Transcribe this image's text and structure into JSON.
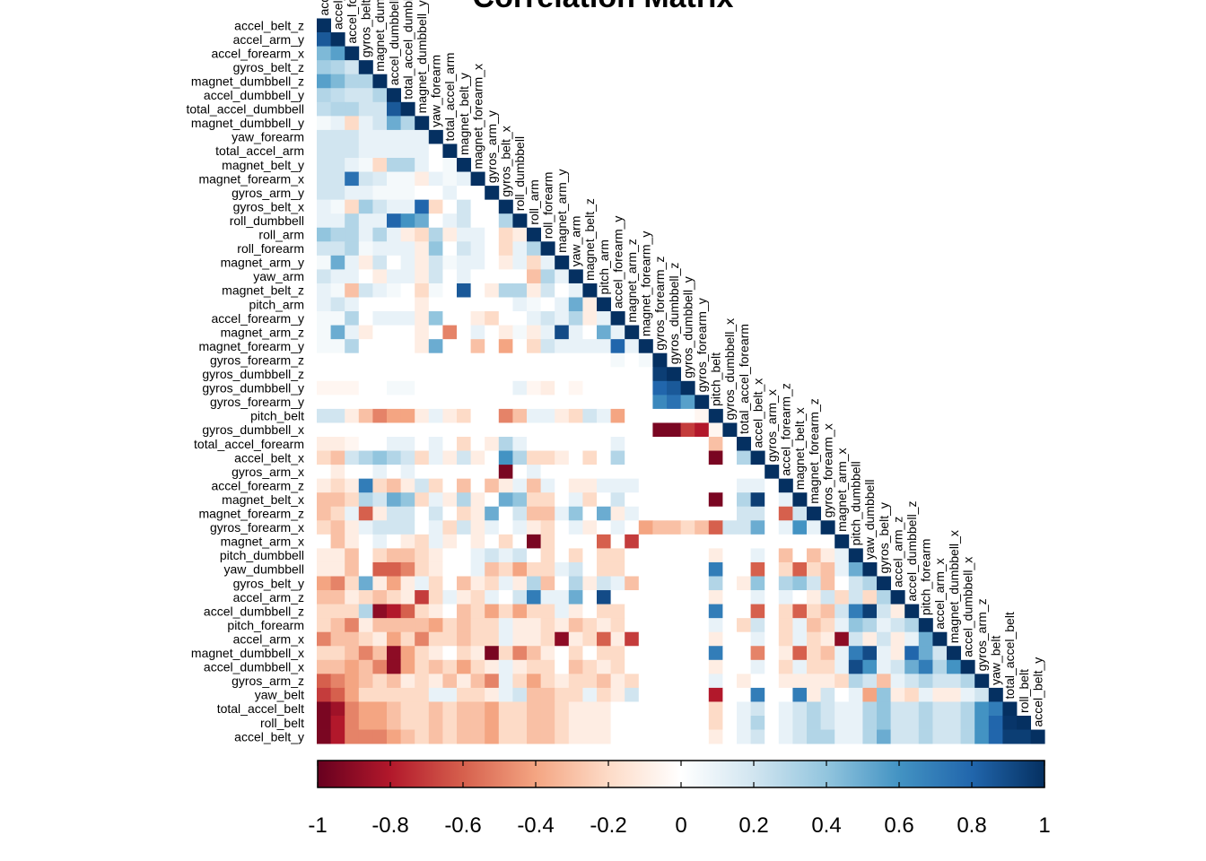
{
  "chart_data": {
    "type": "heatmap",
    "title": "Correlation Matrix",
    "variables": [
      "accel_belt_z",
      "accel_arm_y",
      "accel_forearm_x",
      "gyros_belt_z",
      "magnet_dumbbell_z",
      "accel_dumbbell_y",
      "total_accel_dumbbell",
      "magnet_dumbbell_y",
      "yaw_forearm",
      "total_accel_arm",
      "magnet_belt_y",
      "magnet_forearm_x",
      "gyros_arm_y",
      "gyros_belt_x",
      "roll_dumbbell",
      "roll_arm",
      "roll_forearm",
      "magnet_arm_y",
      "yaw_arm",
      "magnet_belt_z",
      "pitch_arm",
      "accel_forearm_y",
      "magnet_arm_z",
      "magnet_forearm_y",
      "gyros_forearm_z",
      "gyros_dumbbell_z",
      "gyros_dumbbell_y",
      "gyros_forearm_y",
      "pitch_belt",
      "gyros_dumbbell_x",
      "total_accel_forearm",
      "accel_belt_x",
      "gyros_arm_x",
      "accel_forearm_z",
      "magnet_belt_x",
      "magnet_forearm_z",
      "gyros_forearm_x",
      "magnet_arm_x",
      "pitch_dumbbell",
      "yaw_dumbbell",
      "gyros_belt_y",
      "accel_arm_z",
      "accel_dumbbell_z",
      "pitch_forearm",
      "accel_arm_x",
      "magnet_dumbbell_x",
      "accel_dumbbell_x",
      "gyros_arm_z",
      "yaw_belt",
      "total_accel_belt",
      "roll_belt",
      "accel_belt_y"
    ],
    "lower_triangle_rows": [
      [
        1
      ],
      [
        0.85,
        1
      ],
      [
        0.45,
        0.55,
        1
      ],
      [
        0.35,
        0.3,
        0.2,
        1
      ],
      [
        0.55,
        0.45,
        0.3,
        0.3,
        1
      ],
      [
        0.3,
        0.25,
        0.2,
        0.2,
        0.3,
        1
      ],
      [
        0.25,
        0.3,
        0.3,
        0.2,
        0.2,
        0.85,
        1
      ],
      [
        0.05,
        0.1,
        -0.2,
        0.1,
        0.2,
        0.5,
        0.3,
        1
      ],
      [
        0.2,
        0.2,
        0.2,
        0.1,
        0.1,
        0.1,
        0.1,
        0.1,
        1
      ],
      [
        0.2,
        0.2,
        0.2,
        0.1,
        0.1,
        0.1,
        0.1,
        0.1,
        0,
        1
      ],
      [
        0.2,
        0.2,
        0.1,
        0.05,
        -0.2,
        0.3,
        0.3,
        0.1,
        0,
        0.05,
        1
      ],
      [
        0.2,
        0.2,
        0.75,
        0.2,
        0.15,
        0.05,
        0.05,
        -0.1,
        0.1,
        0.05,
        0.1,
        1
      ],
      [
        0.2,
        0.2,
        0.1,
        0.1,
        0.05,
        0.05,
        0.05,
        0,
        0,
        0.1,
        0,
        0,
        1
      ],
      [
        0.1,
        0.05,
        -0.2,
        0.35,
        0.2,
        0.1,
        0.1,
        0.8,
        -0.2,
        0,
        0.2,
        0,
        0,
        1
      ],
      [
        0.1,
        0.1,
        0.3,
        0.1,
        0.1,
        0.8,
        0.6,
        0.5,
        0,
        0.1,
        0.2,
        0,
        0,
        0.3,
        1
      ],
      [
        0.4,
        0.3,
        0.3,
        0.1,
        0.3,
        0.1,
        -0.1,
        -0.2,
        0.3,
        -0.1,
        0.1,
        0.1,
        0,
        -0.2,
        -0.1,
        1
      ],
      [
        0.2,
        0.2,
        0.3,
        0.05,
        0.1,
        0.1,
        0.1,
        -0.1,
        0.4,
        0,
        0.2,
        0.1,
        0,
        -0.2,
        0.1,
        0.3,
        1
      ],
      [
        0.05,
        0.5,
        0.1,
        -0.1,
        0.2,
        0,
        0.1,
        -0.1,
        0.2,
        0.05,
        0.1,
        0.1,
        0,
        -0.1,
        0.1,
        -0.2,
        0.1,
        1
      ],
      [
        0.2,
        0.1,
        0.1,
        0,
        -0.1,
        0.1,
        0.1,
        -0.1,
        0.2,
        0,
        0.1,
        0,
        0,
        0,
        0,
        -0.3,
        0.3,
        0.1,
        1
      ],
      [
        0.1,
        0.05,
        -0.3,
        0.2,
        0.1,
        0.05,
        0,
        -0.2,
        0.05,
        0,
        0.85,
        0,
        -0.1,
        0.3,
        0.3,
        -0.1,
        0.2,
        0,
        0.1,
        1
      ],
      [
        0.1,
        0.2,
        0.1,
        0,
        0,
        0,
        0,
        -0.1,
        0,
        0,
        0,
        0,
        0,
        0,
        0.1,
        0.05,
        0,
        0.1,
        0.5,
        -0.1,
        1
      ],
      [
        0.05,
        0.05,
        0.3,
        0,
        0.1,
        0.1,
        0.1,
        -0.1,
        0.4,
        0,
        0,
        -0.1,
        -0.2,
        0,
        0,
        0.1,
        0.2,
        0.1,
        0.3,
        -0.1,
        0.1,
        1
      ],
      [
        0.05,
        0.5,
        0.1,
        -0.1,
        0,
        0,
        0,
        -0.1,
        0,
        -0.5,
        0,
        0.1,
        0,
        -0.1,
        0.05,
        -0.1,
        0.1,
        0.9,
        0.1,
        0,
        0.5,
        0.1,
        1
      ],
      [
        0.05,
        0.05,
        0.3,
        0,
        0,
        0,
        0,
        -0.1,
        0.5,
        0,
        0,
        -0.3,
        0,
        -0.4,
        0,
        -0.2,
        0.2,
        0.1,
        0.1,
        0.1,
        0.1,
        0.8,
        0.1,
        1
      ],
      [
        0,
        0,
        0,
        0,
        0,
        0,
        0,
        0,
        0,
        0,
        0,
        0,
        0,
        0,
        0,
        0,
        0,
        0,
        0,
        0,
        0,
        0.05,
        0,
        0.05,
        1
      ],
      [
        0,
        0,
        0,
        0,
        0,
        0,
        0,
        0,
        0,
        0,
        0,
        0,
        0,
        0,
        0,
        0,
        0,
        0,
        0,
        0,
        0,
        0,
        0,
        0,
        0.95,
        1
      ],
      [
        -0.05,
        -0.05,
        -0.05,
        0,
        0,
        0.05,
        0.05,
        0,
        0,
        0,
        0,
        0,
        0,
        0,
        0.1,
        -0.05,
        -0.1,
        0,
        -0.05,
        0,
        0,
        0,
        0,
        0,
        0.8,
        0.85,
        1
      ],
      [
        0,
        0,
        0,
        0,
        0,
        0,
        0,
        0,
        0,
        0,
        0,
        0,
        0,
        0,
        0,
        0,
        0,
        0,
        0,
        0,
        0,
        0,
        0,
        0,
        0.65,
        0.75,
        0.55,
        1
      ],
      [
        0.2,
        0.2,
        -0.1,
        -0.3,
        -0.5,
        -0.4,
        -0.4,
        -0.1,
        0.1,
        -0.1,
        -0.2,
        0,
        0,
        -0.5,
        -0.3,
        0.1,
        0.1,
        -0.1,
        -0.2,
        0.2,
        0.1,
        -0.4,
        0,
        0,
        0,
        0,
        0,
        -0.05,
        1
      ],
      [
        0,
        0,
        0,
        0,
        0,
        0,
        0,
        0,
        0,
        0,
        0,
        0,
        0,
        0,
        0,
        0,
        0,
        0,
        0,
        0,
        0,
        0,
        0,
        0,
        -0.95,
        -0.95,
        -0.7,
        -0.8,
        -0.05,
        1
      ],
      [
        -0.1,
        -0.1,
        -0.05,
        0,
        0,
        0.1,
        0.1,
        0,
        0.1,
        0,
        -0.2,
        0,
        -0.1,
        0.3,
        0.1,
        0,
        0,
        0,
        0,
        0,
        0,
        0.1,
        0,
        0,
        0,
        0,
        0,
        0,
        -0.3,
        0,
        1
      ],
      [
        -0.2,
        -0.3,
        0.2,
        0.3,
        0.4,
        0.3,
        0.2,
        -0.2,
        0.1,
        -0.1,
        0.2,
        -0.1,
        0,
        0.6,
        0.3,
        -0.2,
        -0.2,
        -0.1,
        0,
        -0.2,
        0,
        0.3,
        0,
        0,
        0,
        0,
        0,
        0,
        -0.95,
        0,
        0.3,
        1
      ],
      [
        0,
        -0.1,
        0,
        0,
        0.1,
        0,
        0.1,
        0,
        0,
        0,
        0,
        0,
        0,
        -0.95,
        0,
        0.1,
        0,
        0,
        0,
        0,
        0,
        0,
        0,
        0,
        0,
        0,
        0,
        0,
        0,
        0,
        0,
        0,
        1
      ],
      [
        -0.1,
        -0.2,
        -0.1,
        0.7,
        -0.2,
        -0.3,
        -0.1,
        0.2,
        -0.2,
        0,
        -0.3,
        0,
        -0.3,
        -0.1,
        0.1,
        -0.3,
        0.1,
        0,
        -0.1,
        -0.1,
        0.1,
        0.1,
        0.1,
        0,
        0,
        0,
        0,
        0,
        0,
        0,
        0.1,
        0.1,
        0,
        1
      ],
      [
        -0.3,
        -0.3,
        -0.2,
        0.3,
        0.2,
        0.5,
        0.4,
        -0.2,
        0.1,
        -0.1,
        0.3,
        -0.1,
        0,
        0.5,
        0.4,
        -0.2,
        -0.2,
        0,
        0.1,
        -0.2,
        0,
        0.2,
        0,
        0,
        0,
        0,
        0,
        0,
        -0.95,
        0,
        0.3,
        0.95,
        0,
        0.1,
        1
      ],
      [
        -0.3,
        -0.2,
        0.1,
        -0.6,
        -0.1,
        0.2,
        0.2,
        0,
        0.2,
        0,
        -0.2,
        -0.1,
        0.5,
        0,
        0.2,
        -0.3,
        -0.3,
        0.1,
        0.4,
        0,
        0.5,
        -0.1,
        0.1,
        0,
        0,
        0,
        0,
        0,
        0,
        0,
        0.2,
        0.2,
        0,
        -0.6,
        0.2,
        1
      ],
      [
        -0.2,
        -0.3,
        -0.1,
        0.1,
        0.2,
        0.2,
        0.2,
        0,
        0.1,
        -0.2,
        0.2,
        -0.1,
        0.1,
        0,
        0.1,
        -0.1,
        -0.2,
        0,
        0.1,
        -0.1,
        0,
        0.1,
        0,
        -0.4,
        -0.3,
        -0.3,
        -0.2,
        -0.3,
        -0.6,
        0.2,
        0.2,
        0.5,
        0,
        0.1,
        0.6,
        0.1,
        1
      ],
      [
        0,
        -0.3,
        -0.1,
        0,
        0.1,
        0,
        -0.1,
        -0.2,
        0.1,
        -0.1,
        0,
        -0.1,
        0,
        -0.2,
        0,
        -0.95,
        -0.2,
        0,
        0,
        0,
        -0.6,
        0,
        -0.7,
        0,
        0,
        0,
        0,
        0,
        0,
        0,
        0,
        0,
        0,
        0,
        0,
        0,
        0,
        1
      ],
      [
        -0.1,
        -0.1,
        -0.3,
        0,
        -0.2,
        -0.3,
        -0.3,
        -0.2,
        -0.1,
        0,
        0,
        0.1,
        0.2,
        0.1,
        0.2,
        0,
        -0.2,
        0,
        -0.2,
        0,
        -0.2,
        -0.2,
        0,
        0,
        0,
        0,
        0,
        0,
        -0.1,
        0,
        0,
        0.1,
        0,
        -0.3,
        0,
        -0.3,
        -0.1,
        0.1,
        1
      ],
      [
        -0.1,
        -0.1,
        -0.3,
        0,
        -0.6,
        -0.6,
        -0.5,
        -0.2,
        -0.1,
        0,
        0,
        0.1,
        -0.3,
        -0.2,
        -0.4,
        -0.2,
        -0.2,
        0.1,
        0.2,
        0,
        -0.2,
        -0.2,
        0,
        0,
        0,
        0,
        0,
        0,
        0.7,
        0,
        0,
        -0.6,
        0,
        -0.2,
        -0.6,
        -0.2,
        -0.3,
        0.1,
        0.5,
        1
      ],
      [
        -0.4,
        -0.5,
        -0.2,
        0.5,
        -0.1,
        -0.4,
        -0.1,
        0.1,
        -0.2,
        0,
        -0.3,
        -0.1,
        -0.2,
        0.1,
        -0.1,
        0.3,
        -0.3,
        0,
        0.3,
        -0.1,
        0.2,
        0.1,
        -0.3,
        0,
        0,
        0,
        0,
        0,
        0.3,
        0,
        -0.1,
        0.4,
        0,
        0.3,
        0.4,
        0.2,
        -0.3,
        0,
        0.2,
        0.3,
        1
      ],
      [
        -0.3,
        -0.3,
        -0.1,
        -0.2,
        -0.3,
        -0.2,
        -0.1,
        -0.7,
        -0.2,
        0.1,
        -0.1,
        -0.2,
        0.1,
        0,
        0.2,
        0.7,
        0.1,
        0.1,
        0.5,
        0,
        0.9,
        0,
        0,
        0,
        0,
        0,
        0,
        0,
        -0.1,
        0,
        0,
        0.1,
        0,
        0.1,
        0,
        -0.1,
        0.2,
        -0.2,
        0.2,
        -0.2,
        0.3,
        1
      ],
      [
        -0.2,
        -0.2,
        -0.2,
        0.3,
        -0.9,
        -0.8,
        -0.6,
        -0.2,
        -0.1,
        0,
        -0.3,
        -0.2,
        -0.4,
        -0.2,
        -0.4,
        -0.2,
        -0.2,
        0.1,
        -0.1,
        0,
        -0.2,
        -0.2,
        0,
        0,
        0,
        0,
        0,
        0,
        0.7,
        0,
        0,
        -0.6,
        0,
        -0.2,
        -0.6,
        -0.2,
        -0.3,
        0.2,
        0.7,
        0.95,
        0.2,
        -0.1,
        1
      ],
      [
        -0.2,
        -0.3,
        -0.5,
        -0.1,
        -0.3,
        -0.3,
        -0.3,
        -0.3,
        -0.4,
        -0.2,
        -0.3,
        -0.2,
        -0.2,
        0.1,
        -0.1,
        -0.1,
        -0.2,
        -0.1,
        -0.3,
        -0.2,
        -0.1,
        -0.2,
        0,
        0,
        0,
        0,
        0,
        0,
        0.1,
        0,
        -0.2,
        0.2,
        0,
        -0.2,
        0.1,
        -0.3,
        -0.2,
        0.1,
        0.4,
        0.3,
        0.1,
        0.2,
        0.3,
        1
      ],
      [
        -0.5,
        -0.3,
        -0.3,
        -0.2,
        -0.1,
        -0.4,
        -0.2,
        -0.5,
        -0.2,
        -0.2,
        -0.3,
        -0.2,
        -0.2,
        0.1,
        -0.1,
        -0.1,
        -0.2,
        -0.9,
        -0.1,
        -0.2,
        -0.6,
        -0.1,
        -0.7,
        0,
        0,
        0,
        0,
        0,
        -0.1,
        0,
        0,
        0.1,
        0,
        -0.2,
        0.1,
        -0.2,
        -0.1,
        -0.9,
        0.2,
        -0.1,
        0.2,
        -0.1,
        0.1,
        0.5,
        1
      ],
      [
        -0.2,
        -0.2,
        -0.3,
        -0.5,
        -0.3,
        -0.9,
        -0.4,
        -0.2,
        -0.1,
        0,
        -0.2,
        -0.1,
        -0.95,
        -0.2,
        -0.5,
        -0.3,
        -0.1,
        0,
        -0.2,
        0,
        -0.2,
        -0.2,
        0,
        0,
        0,
        0,
        0,
        0,
        0.7,
        0,
        0,
        -0.5,
        0,
        -0.1,
        -0.6,
        -0.2,
        -0.3,
        0.1,
        0.7,
        0.9,
        0.1,
        -0.1,
        0.8,
        0.5,
        0.2,
        1
      ],
      [
        -0.3,
        -0.3,
        -0.4,
        -0.3,
        -0.5,
        -0.9,
        -0.4,
        -0.2,
        -0.3,
        -0.2,
        -0.4,
        -0.2,
        -0.1,
        0.1,
        -0.1,
        -0.2,
        -0.2,
        0,
        -0.3,
        -0.2,
        -0.1,
        -0.2,
        0,
        0,
        0,
        0,
        0,
        0,
        -0.1,
        0,
        0,
        0.1,
        0,
        -0.2,
        0.1,
        -0.2,
        -0.2,
        0.1,
        0.9,
        0.6,
        0.1,
        0.2,
        0.5,
        0.7,
        0.3,
        0.6,
        1
      ],
      [
        -0.6,
        -0.5,
        -0.4,
        -0.3,
        -0.2,
        -0.3,
        -0.1,
        -0.2,
        -0.1,
        -0.3,
        -0.1,
        -0.3,
        -0.5,
        0.1,
        -0.2,
        -0.4,
        -0.2,
        -0.1,
        -0.2,
        -0.2,
        -0.3,
        -0.1,
        -0.2,
        0,
        0,
        0,
        0,
        0,
        0.1,
        0,
        -0.1,
        0,
        0,
        -0.1,
        -0.1,
        -0.1,
        -0.1,
        -0.2,
        0.3,
        0.2,
        -0.3,
        0.1,
        0.2,
        0.3,
        0.2,
        0.2,
        0.3,
        1
      ],
      [
        -0.7,
        -0.6,
        -0.4,
        -0.2,
        -0.2,
        -0.2,
        -0.2,
        -0.2,
        0.1,
        0.1,
        -0.2,
        -0.2,
        -0.1,
        0.1,
        0.2,
        -0.3,
        -0.3,
        -0.2,
        -0.2,
        0.1,
        -0.2,
        -0.1,
        0.2,
        0,
        0,
        0,
        0,
        0,
        -0.8,
        0,
        0,
        0.7,
        0,
        0,
        0.7,
        -0.1,
        0.2,
        0,
        0.1,
        -0.4,
        0.4,
        -0.1,
        -0.2,
        0.1,
        -0.1,
        -0.1,
        0.1,
        0.2,
        1
      ],
      [
        -0.95,
        -0.85,
        -0.5,
        -0.4,
        -0.4,
        -0.3,
        -0.2,
        -0.2,
        -0.3,
        -0.2,
        -0.3,
        -0.3,
        -0.4,
        -0.2,
        -0.2,
        -0.3,
        -0.3,
        -0.2,
        -0.1,
        -0.1,
        -0.1,
        0,
        0,
        0,
        0,
        0,
        0,
        0,
        -0.2,
        0,
        0.1,
        0.2,
        0,
        0.1,
        0.2,
        0.3,
        0.2,
        0.1,
        0.1,
        0.3,
        0.4,
        0.2,
        0.2,
        0.3,
        0.2,
        0.2,
        0.3,
        0.6,
        0.7,
        1
      ],
      [
        -0.95,
        -0.8,
        -0.5,
        -0.4,
        -0.4,
        -0.3,
        -0.2,
        -0.2,
        -0.3,
        -0.2,
        -0.3,
        -0.3,
        -0.4,
        -0.2,
        -0.2,
        -0.3,
        -0.3,
        -0.2,
        -0.1,
        -0.1,
        -0.1,
        0,
        0,
        0,
        0,
        0,
        0,
        0,
        -0.2,
        0,
        0.1,
        0.3,
        0,
        0.1,
        0.2,
        0.3,
        0.2,
        0.1,
        0.1,
        0.3,
        0.4,
        0.2,
        0.2,
        0.3,
        0.2,
        0.2,
        0.3,
        0.6,
        0.8,
        0.98,
        1
      ],
      [
        -0.95,
        -0.8,
        -0.5,
        -0.5,
        -0.5,
        -0.4,
        -0.3,
        -0.2,
        -0.3,
        -0.2,
        -0.3,
        -0.3,
        -0.4,
        -0.2,
        -0.2,
        -0.3,
        -0.3,
        -0.2,
        -0.1,
        -0.1,
        -0.1,
        0,
        0,
        0,
        0,
        0,
        0,
        0,
        -0.1,
        0,
        0.1,
        0.2,
        0,
        0.1,
        0.2,
        0.3,
        0.3,
        0.1,
        0.1,
        0.3,
        0.5,
        0.2,
        0.2,
        0.3,
        0.2,
        0.2,
        0.3,
        0.6,
        0.8,
        0.95,
        0.95,
        1
      ]
    ],
    "colorbar": {
      "range": [
        -1,
        1
      ],
      "ticks": [
        "-1",
        "-0.8",
        "-0.6",
        "-0.4",
        "-0.2",
        "0",
        "0.2",
        "0.4",
        "0.6",
        "0.8",
        "1"
      ],
      "low_color": "#67001F",
      "mid_color": "#FFFFFF",
      "high_color": "#053061"
    }
  }
}
